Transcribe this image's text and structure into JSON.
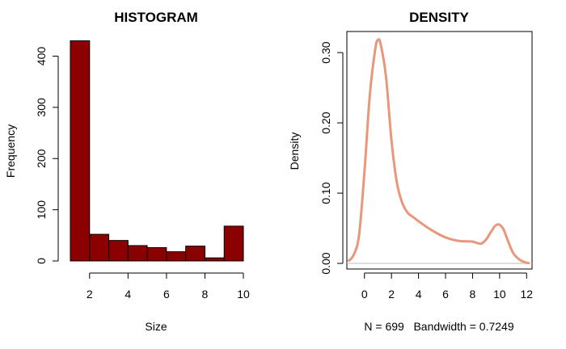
{
  "chart_data": [
    {
      "type": "bar",
      "title": "HISTOGRAM",
      "xlabel": "Size",
      "ylabel": "Frequency",
      "bin_edges": [
        1,
        2,
        3,
        4,
        5,
        6,
        7,
        8,
        9,
        10
      ],
      "values": [
        430,
        52,
        40,
        30,
        26,
        18,
        29,
        6,
        68
      ],
      "xlim": [
        1,
        10
      ],
      "ylim": [
        0,
        430
      ],
      "x_ticks": [
        2,
        4,
        6,
        8,
        10
      ],
      "y_ticks": [
        0,
        100,
        200,
        300,
        400
      ],
      "bar_color": "#8B0000",
      "grid": false,
      "legend": "none"
    },
    {
      "type": "line",
      "title": "DENSITY",
      "xlabel": "N = 699   Bandwidth = 0.7249",
      "ylabel": "Density",
      "x": [
        -1.2,
        -0.8,
        -0.4,
        0,
        0.4,
        0.8,
        1.0,
        1.2,
        1.6,
        2.0,
        2.4,
        2.8,
        3.2,
        3.6,
        4,
        5,
        6,
        7,
        8,
        8.6,
        9.0,
        9.4,
        9.7,
        10.0,
        10.3,
        10.6,
        11.0,
        11.5,
        12.0,
        12.2
      ],
      "y": [
        0.003,
        0.012,
        0.04,
        0.13,
        0.24,
        0.305,
        0.318,
        0.312,
        0.265,
        0.175,
        0.115,
        0.086,
        0.072,
        0.066,
        0.06,
        0.047,
        0.037,
        0.032,
        0.031,
        0.028,
        0.034,
        0.046,
        0.054,
        0.055,
        0.048,
        0.033,
        0.015,
        0.005,
        0.001,
        0.0005
      ],
      "xlim": [
        -1.3,
        12.4
      ],
      "ylim": [
        -0.008,
        0.33
      ],
      "x_ticks": [
        0,
        2,
        4,
        6,
        8,
        10,
        12
      ],
      "y_ticks": [
        0.0,
        0.1,
        0.2,
        0.3
      ],
      "y_tick_labels": [
        "0.00",
        "0.10",
        "0.20",
        "0.30"
      ],
      "line_color": "#E9967A",
      "baseline_color": "#BEBEBE",
      "grid": false,
      "legend": "none"
    }
  ]
}
